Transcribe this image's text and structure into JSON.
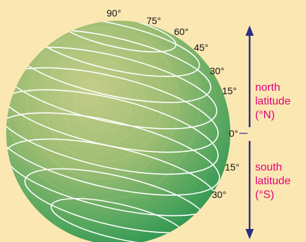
{
  "latitude_labels": {
    "lat_90": "90°",
    "lat_75": "75°",
    "lat_60": "60°",
    "lat_45": "45°",
    "lat_30n": "30°",
    "lat_15n": "15°",
    "lat_0": "0°",
    "lat_15s": "15°",
    "lat_30s": "30°"
  },
  "north": {
    "line1": "north",
    "line2": "latitude",
    "line3": "(°N)"
  },
  "south": {
    "line1": "south",
    "line2": "latitude",
    "line3": "(°S)"
  },
  "colors": {
    "background": "#fbe7b2",
    "globe_light": "#b7c77d",
    "globe_dark": "#1f8e4a",
    "arrow": "#2c2e83",
    "label_accent": "#e2007a",
    "latitude_lines": "#ffffff"
  }
}
